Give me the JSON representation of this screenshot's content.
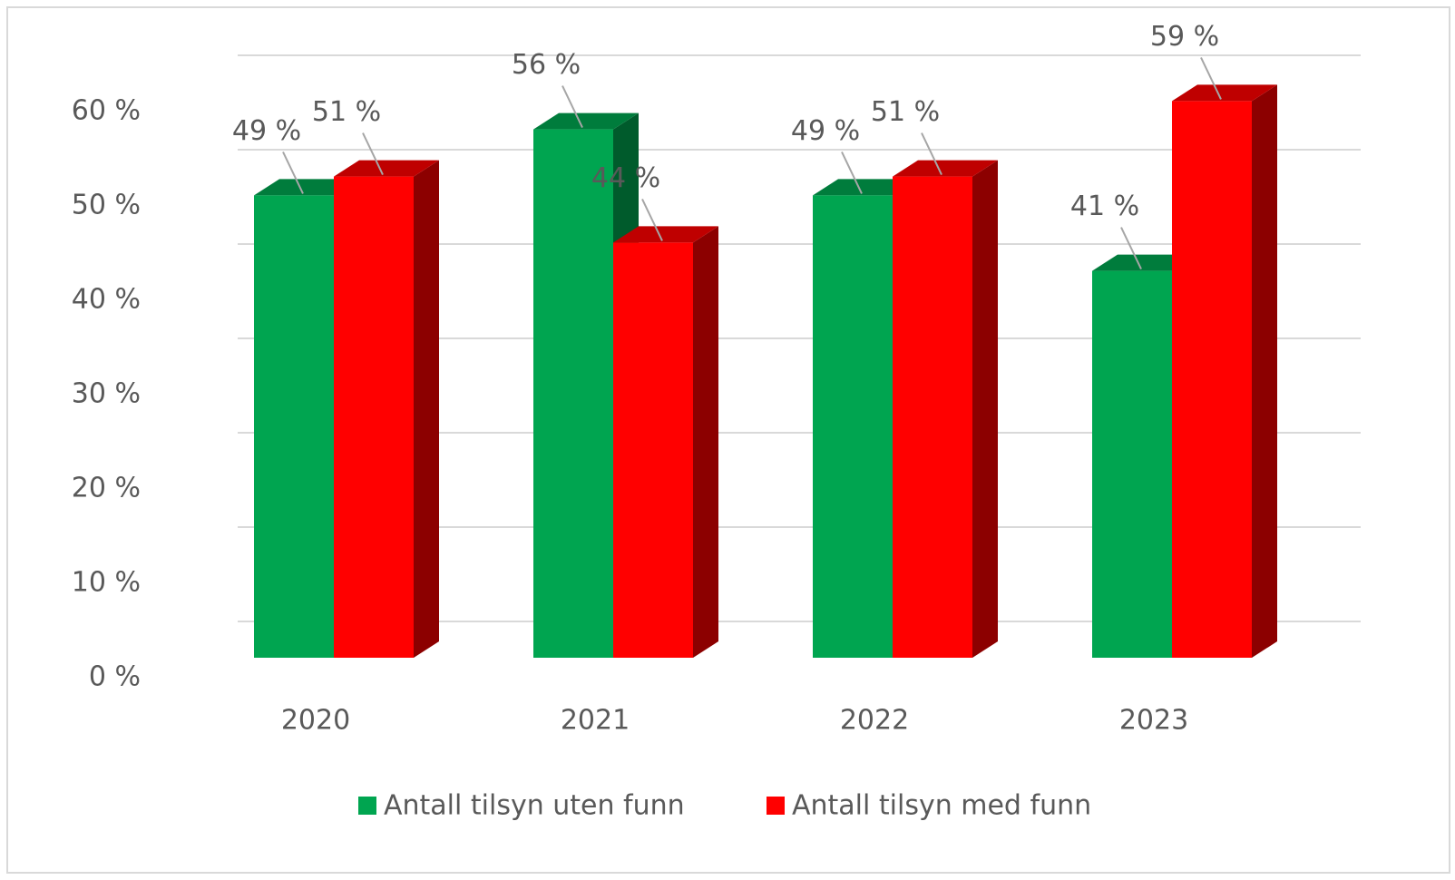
{
  "chart_data": {
    "type": "bar3d",
    "categories": [
      "2020",
      "2021",
      "2022",
      "2023"
    ],
    "series": [
      {
        "name": "Antall tilsyn uten funn",
        "color": "#00a550",
        "values": [
          49,
          56,
          49,
          41
        ],
        "value_labels": [
          "49 %",
          "56 %",
          "49 %",
          "41 %"
        ]
      },
      {
        "name": "Antall tilsyn med funn",
        "color": "#ff0000",
        "values": [
          51,
          44,
          51,
          59
        ],
        "value_labels": [
          "51 %",
          "44 %",
          "51 %",
          "59 %"
        ]
      }
    ],
    "ylim": [
      0,
      60
    ],
    "yticks": [
      {
        "value": 0,
        "label": "0 %"
      },
      {
        "value": 10,
        "label": "10 %"
      },
      {
        "value": 20,
        "label": "20 %"
      },
      {
        "value": 30,
        "label": "30 %"
      },
      {
        "value": 40,
        "label": "40 %"
      },
      {
        "value": 50,
        "label": "50 %"
      },
      {
        "value": 60,
        "label": "60 %"
      }
    ],
    "grid": true,
    "legend": "bottom"
  }
}
